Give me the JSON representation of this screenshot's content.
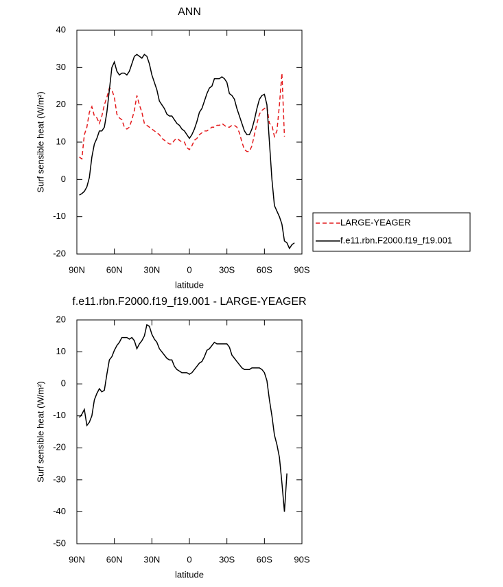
{
  "chart_data": [
    {
      "type": "line",
      "title": "ANN",
      "xlabel": "latitude",
      "ylabel": "Surf sensible heat (W/m²)",
      "x": [
        88,
        86,
        84,
        82,
        80,
        78,
        76,
        74,
        72,
        70,
        68,
        66,
        64,
        62,
        60,
        58,
        56,
        54,
        52,
        50,
        48,
        46,
        44,
        42,
        40,
        38,
        36,
        34,
        32,
        30,
        28,
        26,
        24,
        22,
        20,
        18,
        16,
        14,
        12,
        10,
        8,
        6,
        4,
        2,
        0,
        -2,
        -4,
        -6,
        -8,
        -10,
        -12,
        -14,
        -16,
        -18,
        -20,
        -22,
        -24,
        -26,
        -28,
        -30,
        -32,
        -34,
        -36,
        -38,
        -40,
        -42,
        -44,
        -46,
        -48,
        -50,
        -52,
        -54,
        -56,
        -58,
        -60,
        -62,
        -64,
        -66,
        -68,
        -70,
        -72,
        -74,
        -76,
        -78,
        -80,
        -82,
        -84
      ],
      "series": [
        {
          "name": "LARGE-YEAGER",
          "color": "#e41a1c",
          "line_style": "dashed",
          "values": [
            6,
            5.5,
            12,
            14,
            18,
            19.5,
            17,
            16.5,
            15,
            17,
            20,
            22,
            24.5,
            24,
            22,
            17.5,
            16.5,
            16,
            14,
            13.5,
            14,
            16,
            18.5,
            22.5,
            20,
            18,
            15,
            14.5,
            14,
            13.5,
            13,
            12.5,
            12,
            11,
            10.5,
            10,
            9.5,
            9.5,
            10.5,
            11,
            10.5,
            10,
            10,
            8.5,
            8,
            9,
            10.5,
            11,
            12,
            12.5,
            13,
            13,
            13.5,
            14,
            14,
            14.5,
            14.5,
            15,
            14.5,
            14,
            14,
            14.5,
            14.5,
            14,
            12.5,
            10,
            8,
            7.5,
            7.5,
            9,
            12,
            15,
            17.5,
            18.5,
            19,
            19.5,
            15,
            14.5,
            11.5,
            13,
            20,
            28.5,
            11.5,
            null,
            null,
            null,
            null
          ]
        },
        {
          "name": "f.e11.rbn.F2000.f19_f19.001",
          "color": "#000000",
          "line_style": "solid",
          "values": [
            -4.2,
            -3.8,
            -3.2,
            -2,
            0.5,
            6,
            9.5,
            11,
            13,
            13,
            14,
            18,
            24,
            30,
            31.5,
            29,
            28,
            28.5,
            28.5,
            28,
            29,
            31,
            33,
            33.5,
            33,
            32.5,
            33.5,
            33,
            31,
            28,
            26,
            24,
            21,
            20,
            19,
            17.5,
            17,
            17,
            16,
            15,
            14.5,
            13.5,
            13,
            12,
            11,
            12,
            13.5,
            15.5,
            18,
            19,
            21,
            23,
            24.5,
            25,
            27,
            27,
            27,
            27.5,
            27,
            26,
            23,
            22.5,
            21.5,
            19,
            17,
            15,
            13,
            12,
            12,
            13.5,
            16,
            19,
            21.5,
            22.5,
            22.8,
            20,
            10,
            0,
            -7,
            -8.5,
            -10,
            -12,
            -16.5,
            -17,
            -18.5,
            -17.5,
            -17
          ]
        }
      ],
      "xlim": [
        90,
        -90
      ],
      "xticks": [
        {
          "value": 90,
          "label": "90N"
        },
        {
          "value": 60,
          "label": "60N"
        },
        {
          "value": 30,
          "label": "30N"
        },
        0,
        {
          "value": -30,
          "label": "30S"
        },
        {
          "value": -60,
          "label": "60S"
        },
        {
          "value": -90,
          "label": "90S"
        }
      ],
      "ylim": [
        -20,
        40
      ],
      "yticks": [
        -20,
        -10,
        0,
        10,
        20,
        30,
        40
      ],
      "grid": false,
      "legend": "outside right"
    },
    {
      "type": "line",
      "title": "f.e11.rbn.F2000.f19_f19.001 - LARGE-YEAGER",
      "xlabel": "latitude",
      "ylabel": "Surf sensible heat (W/m²)",
      "x": [
        88,
        86,
        84,
        82,
        80,
        78,
        76,
        74,
        72,
        70,
        68,
        66,
        64,
        62,
        60,
        58,
        56,
        54,
        52,
        50,
        48,
        46,
        44,
        42,
        40,
        38,
        36,
        34,
        32,
        30,
        28,
        26,
        24,
        22,
        20,
        18,
        16,
        14,
        12,
        10,
        8,
        6,
        4,
        2,
        0,
        -2,
        -4,
        -6,
        -8,
        -10,
        -12,
        -14,
        -16,
        -18,
        -20,
        -22,
        -24,
        -26,
        -28,
        -30,
        -32,
        -34,
        -36,
        -38,
        -40,
        -42,
        -44,
        -46,
        -48,
        -50,
        -52,
        -54,
        -56,
        -58,
        -60,
        -62,
        -64,
        -66,
        -68,
        -70,
        -72,
        -74,
        -76,
        -78
      ],
      "color": "#000000",
      "values": [
        -10.5,
        -9.5,
        -8,
        -13,
        -12,
        -10,
        -5,
        -3,
        -1.5,
        -2.5,
        -2,
        3,
        7.5,
        8.5,
        10.5,
        12,
        13,
        14.5,
        14.5,
        14.5,
        14,
        14.5,
        13.5,
        11,
        12.5,
        13.5,
        15,
        18.5,
        18,
        15.5,
        14,
        13,
        11,
        10,
        9,
        8,
        7.5,
        7.5,
        5.5,
        4.5,
        4,
        3.5,
        3.5,
        3.5,
        3,
        3.5,
        4.5,
        5.5,
        6.5,
        7,
        8.5,
        10.5,
        11,
        12,
        13,
        12.5,
        12.5,
        12.5,
        12.5,
        12.5,
        11.5,
        9,
        8,
        7,
        6,
        5,
        4.5,
        4.5,
        4.5,
        5,
        5,
        5,
        5,
        4.5,
        3.5,
        1,
        -5,
        -10,
        -16,
        -19,
        -23,
        -31,
        -40,
        -28
      ],
      "xlim": [
        90,
        -90
      ],
      "xticks": [
        {
          "value": 90,
          "label": "90N"
        },
        {
          "value": 60,
          "label": "60N"
        },
        {
          "value": 30,
          "label": "30N"
        },
        0,
        {
          "value": -30,
          "label": "30S"
        },
        {
          "value": -60,
          "label": "60S"
        },
        {
          "value": -90,
          "label": "90S"
        }
      ],
      "ylim": [
        -50,
        20
      ],
      "yticks": [
        -50,
        -40,
        -30,
        -20,
        -10,
        0,
        10,
        20
      ],
      "grid": false
    }
  ]
}
